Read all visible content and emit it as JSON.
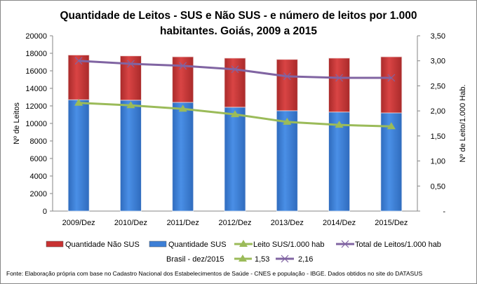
{
  "chart_data": {
    "type": "bar",
    "title_lines": [
      "Quantidade de Leitos - SUS e Não SUS - e número de leitos por 1.000",
      "habitantes. Goiás, 2009 a 2015"
    ],
    "categories": [
      "2009/Dez",
      "2010/Dez",
      "2011/Dez",
      "2012/Dez",
      "2013/Dez",
      "2014/Dez",
      "2015/Dez"
    ],
    "ylabel": "Nº de Leitos",
    "y2label": "Nº de Leito/1.000 Hab.",
    "ylim": [
      0,
      20000
    ],
    "y_ticks": [
      "0",
      "2000",
      "4000",
      "6000",
      "8000",
      "10000",
      "12000",
      "14000",
      "16000",
      "18000",
      "20000"
    ],
    "y2lim": [
      0,
      3.5
    ],
    "y2_ticks": [
      "-",
      "0,50",
      "1,00",
      "1,50",
      "2,00",
      "2,50",
      "3,00",
      "3,50"
    ],
    "series": [
      {
        "name": "Quantidade SUS",
        "kind": "stacked-bar",
        "axis": "left",
        "color": "#3d7fd6",
        "values": [
          12700,
          12650,
          12400,
          11850,
          11450,
          11300,
          11200
        ]
      },
      {
        "name": "Quantidade Não SUS",
        "kind": "stacked-bar",
        "axis": "left",
        "color": "#c83232",
        "values": [
          5100,
          5050,
          5200,
          5600,
          5850,
          6150,
          6400
        ]
      },
      {
        "name": "Leito SUS/1.000 hab",
        "kind": "line",
        "marker": "triangle",
        "axis": "right",
        "color": "#9bbb59",
        "values": [
          2.16,
          2.11,
          2.04,
          1.93,
          1.78,
          1.72,
          1.69
        ]
      },
      {
        "name": "Total de Leitos/1.000 hab",
        "kind": "line",
        "marker": "x",
        "axis": "right",
        "color": "#8064a2",
        "values": [
          3.0,
          2.94,
          2.9,
          2.83,
          2.69,
          2.66,
          2.66
        ]
      }
    ],
    "legend_order": [
      "Quantidade Não SUS",
      "Quantidade SUS",
      "Leito SUS/1.000 hab",
      "Total de Leitos/1.000 hab"
    ],
    "legend_position": "bottom",
    "grid": false,
    "brasil_note": {
      "label": "Brasil -  dez/2015",
      "sus_value": "1,53",
      "total_value": "2,16"
    },
    "source": "Fonte: Elaboração própria com base no  Cadastro Nacional dos Estabelecimentos de Saúde - CNES e população - IBGE. Dados obtidos no site do DATASUS"
  }
}
